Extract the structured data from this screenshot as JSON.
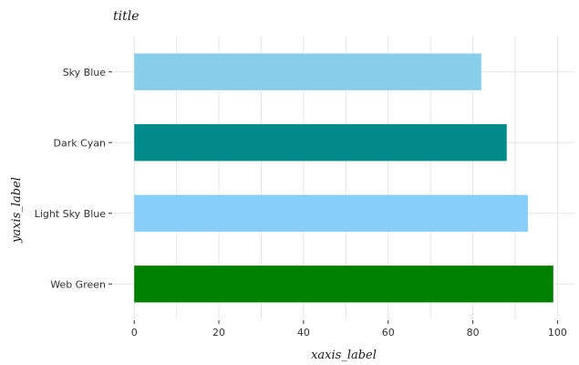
{
  "chart_data": {
    "type": "bar",
    "orientation": "horizontal",
    "title": "title",
    "xlabel": "xaxis_label",
    "ylabel": "yaxis_label",
    "categories": [
      "Web Green",
      "Light Sky Blue",
      "Dark Cyan",
      "Sky Blue"
    ],
    "values": [
      99,
      93,
      88,
      82
    ],
    "colors": [
      "#008000",
      "#87CEFA",
      "#008B8B",
      "#87CEEB"
    ],
    "xlim": [
      -5,
      104
    ],
    "xticks": [
      0,
      20,
      40,
      60,
      80,
      100
    ],
    "grid": true
  }
}
